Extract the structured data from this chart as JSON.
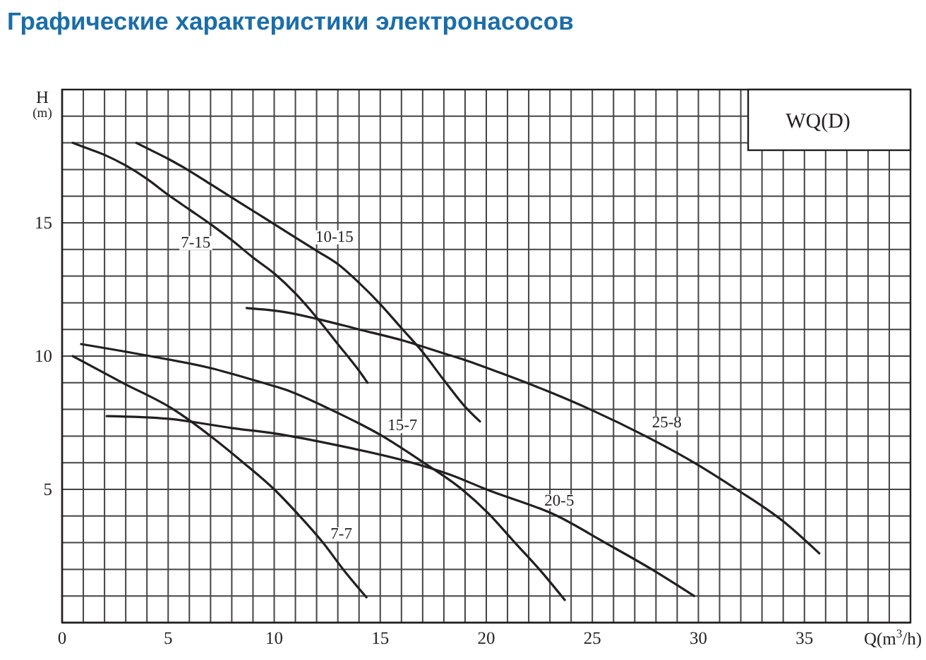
{
  "chart_data": {
    "type": "line",
    "title": "Графические характеристики электронасосов",
    "xlabel": "Q(m$^{3}$/h)",
    "ylabel": "H$_{(m)}$",
    "annotations": [
      "WQ(D)"
    ],
    "xlim": [
      0,
      40
    ],
    "ylim": [
      0,
      20
    ],
    "xticks": [
      0,
      {
        "value": 1,
        "label": null
      },
      {
        "value": 2,
        "label": null
      },
      {
        "value": 3,
        "label": null
      },
      {
        "value": 4,
        "label": null
      },
      5,
      {
        "value": 6,
        "label": null
      },
      {
        "value": 7,
        "label": null
      },
      {
        "value": 8,
        "label": null
      },
      {
        "value": 9,
        "label": null
      },
      10,
      {
        "value": 11,
        "label": null
      },
      {
        "value": 12,
        "label": null
      },
      {
        "value": 13,
        "label": null
      },
      {
        "value": 14,
        "label": null
      },
      15,
      {
        "value": 16,
        "label": null
      },
      {
        "value": 17,
        "label": null
      },
      {
        "value": 18,
        "label": null
      },
      {
        "value": 19,
        "label": null
      },
      20,
      {
        "value": 21,
        "label": null
      },
      {
        "value": 22,
        "label": null
      },
      {
        "value": 23,
        "label": null
      },
      {
        "value": 24,
        "label": null
      },
      25,
      {
        "value": 26,
        "label": null
      },
      {
        "value": 27,
        "label": null
      },
      {
        "value": 28,
        "label": null
      },
      {
        "value": 29,
        "label": null
      },
      30,
      {
        "value": 31,
        "label": null
      },
      {
        "value": 32,
        "label": null
      },
      {
        "value": 33,
        "label": null
      },
      {
        "value": 34,
        "label": null
      },
      35,
      {
        "value": 36,
        "label": null
      },
      {
        "value": 37,
        "label": null
      },
      {
        "value": 38,
        "label": null
      },
      {
        "value": 39,
        "label": null
      },
      {
        "value": 40,
        "label": null
      }
    ],
    "yticks": [
      {
        "value": 0,
        "label": null
      },
      {
        "value": 1,
        "label": null
      },
      {
        "value": 2,
        "label": null
      },
      {
        "value": 3,
        "label": null
      },
      {
        "value": 4,
        "label": null
      },
      5,
      {
        "value": 6,
        "label": null
      },
      {
        "value": 7,
        "label": null
      },
      {
        "value": 8,
        "label": null
      },
      {
        "value": 9,
        "label": null
      },
      10,
      {
        "value": 11,
        "label": null
      },
      {
        "value": 12,
        "label": null
      },
      {
        "value": 13,
        "label": null
      },
      {
        "value": 14,
        "label": null
      },
      15,
      {
        "value": 16,
        "label": null
      },
      {
        "value": 17,
        "label": null
      },
      {
        "value": 18,
        "label": null
      },
      {
        "value": 19,
        "label": null
      },
      {
        "value": 20,
        "label": null
      }
    ],
    "grid": true,
    "legend": false,
    "line_style": "solid",
    "series": [
      {
        "name": "7-15",
        "color": "#231f20",
        "x": [
          0.5,
          1,
          2,
          3,
          4,
          5,
          6,
          7,
          8,
          9,
          10,
          11,
          12,
          13,
          14,
          14.4
        ],
        "values": [
          18,
          17.85,
          17.55,
          17.15,
          16.65,
          16.05,
          15.5,
          14.95,
          14.35,
          13.7,
          13.1,
          12.35,
          11.45,
          10.45,
          9.45,
          9.0
        ]
      },
      {
        "name": "10-15",
        "color": "#231f20",
        "x": [
          3.5,
          4,
          5,
          6,
          7,
          8,
          9,
          10,
          11,
          12,
          13,
          14,
          15,
          16,
          17,
          18,
          19,
          19.7
        ],
        "values": [
          18,
          17.8,
          17.4,
          16.95,
          16.45,
          15.95,
          15.45,
          14.95,
          14.45,
          13.95,
          13.45,
          12.75,
          11.95,
          11.05,
          10.15,
          9.1,
          8.1,
          7.55
        ]
      },
      {
        "name": "25-8",
        "color": "#231f20",
        "x": [
          8.7,
          10.5,
          12,
          14,
          16,
          18,
          19,
          21,
          23,
          24.9,
          27.5,
          29.8,
          31.8,
          34,
          35.7
        ],
        "values": [
          11.8,
          11.65,
          11.4,
          11,
          10.6,
          10.1,
          9.85,
          9.27,
          8.65,
          8,
          7,
          6,
          5,
          3.8,
          2.6
        ]
      },
      {
        "name": "15-7",
        "color": "#231f20",
        "x": [
          0.9,
          4.15,
          7,
          9.45,
          10.5,
          12.65,
          15.1,
          17.05,
          18.85,
          20.1,
          21.35,
          22.5,
          23.7
        ],
        "values": [
          10.45,
          10,
          9.55,
          9,
          8.75,
          8,
          7,
          6,
          5,
          4.1,
          3,
          2,
          0.85
        ]
      },
      {
        "name": "20-5",
        "color": "#231f20",
        "x": [
          2.1,
          5,
          8,
          10,
          13,
          16.5,
          18.3,
          20,
          23.35,
          25.6,
          27.8,
          29.8
        ],
        "values": [
          7.75,
          7.65,
          7.3,
          7.1,
          6.65,
          6,
          5.55,
          5,
          4,
          3,
          2,
          1.0
        ]
      },
      {
        "name": "7-7",
        "color": "#231f20",
        "x": [
          0.5,
          2.85,
          5.25,
          7,
          8.55,
          10,
          11.2,
          12.3,
          13.25,
          14.35
        ],
        "values": [
          10,
          9,
          8,
          7,
          6,
          5,
          4,
          3,
          2,
          0.95
        ]
      }
    ]
  }
}
